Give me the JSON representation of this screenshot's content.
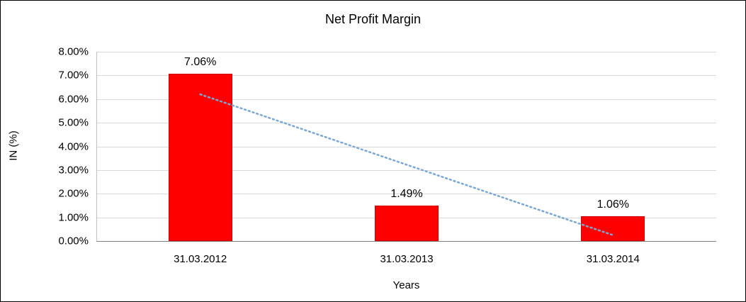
{
  "chart_data": {
    "type": "bar",
    "title": "Net Profit Margin",
    "xlabel": "Years",
    "ylabel": "IN (%)",
    "categories": [
      "31.03.2012",
      "31.03.2013",
      "31.03.2014"
    ],
    "values": [
      7.06,
      1.49,
      1.06
    ],
    "data_labels": [
      "7.06%",
      "1.49%",
      "1.06%"
    ],
    "ylim": [
      0,
      8
    ],
    "y_tick_step": 1,
    "y_tick_labels": [
      "0.00%",
      "1.00%",
      "2.00%",
      "3.00%",
      "4.00%",
      "5.00%",
      "6.00%",
      "7.00%",
      "8.00%"
    ],
    "grid": true,
    "legend_position": "none",
    "bar_color": "#ff0000",
    "bar_border_color": "#cc0000",
    "gridline_color": "#d9d9d9",
    "trendline": {
      "style": "dotted",
      "color": "#7ba7d4",
      "points": [
        {
          "x_index": 0,
          "y": 6.2
        },
        {
          "x_index": 2,
          "y": 0.25
        }
      ]
    }
  }
}
